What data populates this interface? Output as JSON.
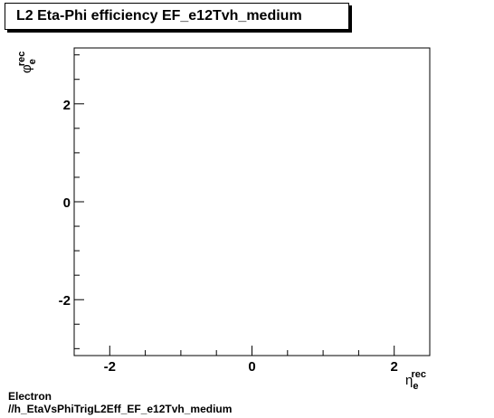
{
  "chart_data": {
    "type": "heatmap",
    "title": "L2 Eta-Phi efficiency EF_e12Tvh_medium",
    "xlabel": {
      "main": "η",
      "sub": "e",
      "sup": "rec"
    },
    "ylabel": {
      "main": "φ",
      "sub": "e",
      "sup": "rec"
    },
    "xlim": [
      -2.5,
      2.5
    ],
    "ylim": [
      -3.1416,
      3.1416
    ],
    "x_major_ticks": [
      -2,
      0,
      2
    ],
    "y_major_ticks": [
      -2,
      0,
      2
    ],
    "x_tick_labels": [
      "-2",
      "0",
      "2"
    ],
    "y_tick_labels": [
      "-2",
      "0",
      "2"
    ],
    "bins": [],
    "grid": false
  },
  "footer": {
    "line1": "Electron",
    "line2": "//h_EtaVsPhiTrigL2Eff_EF_e12Tvh_medium"
  }
}
